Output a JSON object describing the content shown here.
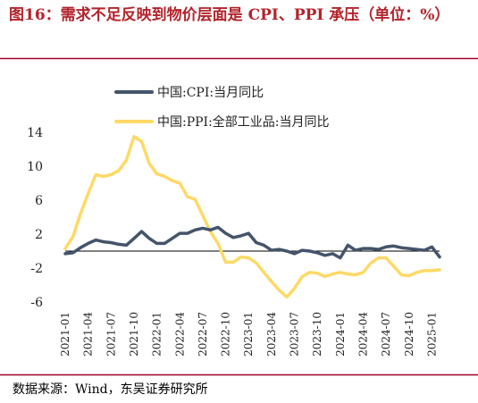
{
  "figure": {
    "title": "图16：需求不足反映到物价层面是 CPI、PPI 承压（单位：%）",
    "source": "数据来源：Wind，东吴证券研究所"
  },
  "colors": {
    "title": "#b3232b",
    "cpi": "#44546a",
    "ppi": "#ffd966",
    "rule": "#a5002a"
  },
  "chart_data": {
    "type": "line",
    "title": "",
    "xlabel": "",
    "ylabel": "",
    "ylim": [
      -6,
      14
    ],
    "yticks": [
      -6,
      -2,
      2,
      6,
      10,
      14
    ],
    "grid": false,
    "legend": "top-left",
    "x": [
      "2021-01",
      "2021-02",
      "2021-03",
      "2021-04",
      "2021-05",
      "2021-06",
      "2021-07",
      "2021-08",
      "2021-09",
      "2021-10",
      "2021-11",
      "2021-12",
      "2022-01",
      "2022-02",
      "2022-03",
      "2022-04",
      "2022-05",
      "2022-06",
      "2022-07",
      "2022-08",
      "2022-09",
      "2022-10",
      "2022-11",
      "2022-12",
      "2023-01",
      "2023-02",
      "2023-03",
      "2023-04",
      "2023-05",
      "2023-06",
      "2023-07",
      "2023-08",
      "2023-09",
      "2023-10",
      "2023-11",
      "2023-12",
      "2024-01",
      "2024-02",
      "2024-03",
      "2024-04",
      "2024-05",
      "2024-06",
      "2024-07",
      "2024-08",
      "2024-09",
      "2024-10",
      "2024-11",
      "2024-12",
      "2025-01",
      "2025-02"
    ],
    "xtick_labels": [
      "2021-01",
      "2021-04",
      "2021-07",
      "2021-10",
      "2022-01",
      "2022-04",
      "2022-07",
      "2022-10",
      "2023-01",
      "2023-04",
      "2023-07",
      "2023-10",
      "2024-01",
      "2024-04",
      "2024-07",
      "2024-10",
      "2025-01"
    ],
    "series": [
      {
        "name": "中国:CPI:当月同比",
        "color": "#44546a",
        "values": [
          -0.3,
          -0.2,
          0.4,
          0.9,
          1.3,
          1.1,
          1.0,
          0.8,
          0.7,
          1.5,
          2.3,
          1.5,
          0.9,
          0.9,
          1.5,
          2.1,
          2.1,
          2.5,
          2.7,
          2.5,
          2.8,
          2.1,
          1.6,
          1.8,
          2.1,
          1.0,
          0.7,
          0.1,
          0.2,
          0.0,
          -0.3,
          0.1,
          0.0,
          -0.2,
          -0.5,
          -0.3,
          -0.8,
          0.7,
          0.1,
          0.3,
          0.3,
          0.2,
          0.5,
          0.6,
          0.4,
          0.3,
          0.2,
          0.1,
          0.5,
          -0.7
        ]
      },
      {
        "name": "中国:PPI:全部工业品:当月同比",
        "color": "#ffd966",
        "values": [
          0.3,
          1.7,
          4.4,
          6.8,
          9.0,
          8.8,
          9.0,
          9.5,
          10.7,
          13.5,
          12.9,
          10.3,
          9.1,
          8.8,
          8.3,
          8.0,
          6.4,
          6.1,
          4.2,
          2.3,
          0.9,
          -1.3,
          -1.3,
          -0.7,
          -0.8,
          -1.4,
          -2.5,
          -3.6,
          -4.6,
          -5.4,
          -4.4,
          -3.0,
          -2.5,
          -2.6,
          -3.0,
          -2.7,
          -2.5,
          -2.7,
          -2.8,
          -2.5,
          -1.4,
          -0.8,
          -0.8,
          -1.8,
          -2.8,
          -2.9,
          -2.5,
          -2.3,
          -2.3,
          -2.2
        ]
      }
    ]
  }
}
